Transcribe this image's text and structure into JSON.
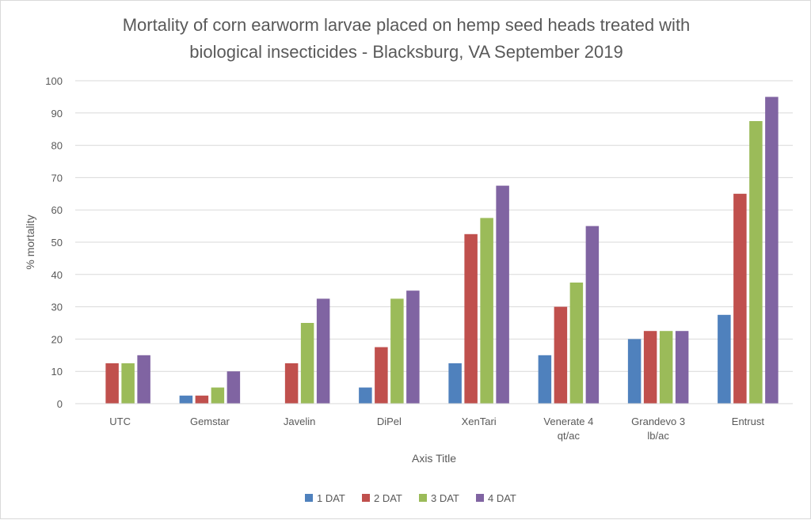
{
  "chart_data": {
    "type": "bar",
    "title_lines": [
      "Mortality of corn earworm larvae placed on hemp seed heads treated with",
      "biological insecticides - Blacksburg, VA September 2019"
    ],
    "xlabel": "Axis Title",
    "ylabel": "% mortality",
    "ylim": [
      0,
      100
    ],
    "yticks": [
      0,
      10,
      20,
      30,
      40,
      50,
      60,
      70,
      80,
      90,
      100
    ],
    "grid": true,
    "legend_position": "bottom",
    "categories": [
      [
        "UTC"
      ],
      [
        "Gemstar"
      ],
      [
        "Javelin"
      ],
      [
        "DiPel"
      ],
      [
        "XenTari"
      ],
      [
        "Venerate 4",
        "qt/ac"
      ],
      [
        "Grandevo 3",
        "lb/ac"
      ],
      [
        "Entrust"
      ]
    ],
    "series": [
      {
        "name": "1 DAT",
        "color": "#4f81bd",
        "values": [
          0,
          2.5,
          0,
          5,
          12.5,
          15,
          20,
          27.5
        ]
      },
      {
        "name": "2 DAT",
        "color": "#c0504d",
        "values": [
          12.5,
          2.5,
          12.5,
          17.5,
          52.5,
          30,
          22.5,
          65
        ]
      },
      {
        "name": "3 DAT",
        "color": "#9bbb59",
        "values": [
          12.5,
          5,
          25,
          32.5,
          57.5,
          37.5,
          22.5,
          87.5
        ]
      },
      {
        "name": "4 DAT",
        "color": "#8064a2",
        "values": [
          15,
          10,
          32.5,
          35,
          67.5,
          55,
          22.5,
          95
        ]
      }
    ]
  }
}
